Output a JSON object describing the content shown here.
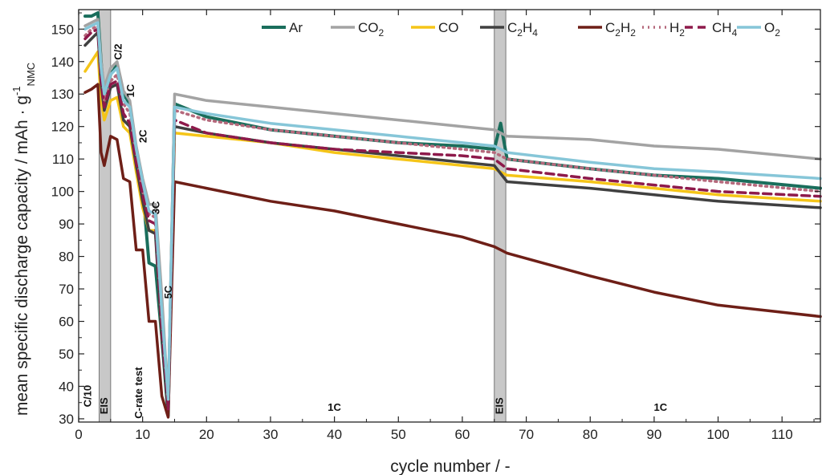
{
  "chart_data": {
    "type": "line",
    "xlabel": "cycle number / -",
    "ylabel_main": "mean specific discharge capacity / mAh · g",
    "ylabel_sup": "-1",
    "ylabel_sub": "NMC",
    "xlim": [
      0,
      116
    ],
    "ylim": [
      29,
      156
    ],
    "xticks": [
      0,
      10,
      20,
      30,
      40,
      50,
      60,
      70,
      80,
      90,
      100,
      110
    ],
    "yticks": [
      30,
      40,
      50,
      60,
      70,
      80,
      90,
      100,
      110,
      120,
      130,
      140,
      150
    ],
    "grid": false,
    "legend_position": "top",
    "eis_bands": [
      [
        3.2,
        5
      ],
      [
        65,
        66.8
      ]
    ],
    "annotations": [
      {
        "text": "C/10",
        "x": 1.5,
        "y": 37,
        "rotate": true
      },
      {
        "text": "EIS",
        "x": 4.1,
        "y": 34,
        "rotate": true
      },
      {
        "text": "C/2",
        "x": 6.3,
        "y": 143,
        "rotate": true
      },
      {
        "text": "1C",
        "x": 8.2,
        "y": 131,
        "rotate": true
      },
      {
        "text": "2C",
        "x": 10.2,
        "y": 117,
        "rotate": true
      },
      {
        "text": "3C",
        "x": 12.2,
        "y": 95,
        "rotate": true
      },
      {
        "text": "5C",
        "x": 14.1,
        "y": 69,
        "rotate": true
      },
      {
        "text": "C-rate test",
        "x": 9.5,
        "y": 38,
        "rotate": true
      },
      {
        "text": "1C",
        "x": 40,
        "y": 32.5,
        "rotate": false
      },
      {
        "text": "EIS",
        "x": 65.9,
        "y": 34,
        "rotate": true
      },
      {
        "text": "1C",
        "x": 91,
        "y": 32.5,
        "rotate": false
      }
    ],
    "series": [
      {
        "name": "Ar",
        "sub": "",
        "color": "#1a6e5c",
        "dash": "",
        "width": 4,
        "x": [
          1,
          2,
          3,
          3.5,
          4,
          5,
          6,
          7,
          8,
          9,
          10,
          11,
          12,
          13,
          14,
          15,
          20,
          30,
          40,
          50,
          60,
          65,
          66,
          67,
          80,
          90,
          100,
          116
        ],
        "y": [
          154,
          154,
          155,
          140,
          129,
          136,
          139,
          130,
          127,
          112,
          101,
          78,
          77,
          55,
          31,
          127,
          123,
          119,
          117,
          115,
          114,
          113,
          121,
          110,
          107,
          105,
          104,
          101
        ]
      },
      {
        "name": "CO",
        "sub": "2",
        "color": "#a3a3a3",
        "dash": "",
        "width": 3.5,
        "x": [
          1,
          2,
          3,
          3.5,
          4,
          5,
          6,
          7,
          8,
          9,
          10,
          11,
          12,
          13,
          14,
          15,
          20,
          30,
          40,
          50,
          60,
          65,
          67,
          80,
          90,
          100,
          116
        ],
        "y": [
          151,
          152,
          153,
          140,
          132,
          138,
          140,
          131,
          128,
          114,
          104,
          96,
          96,
          68,
          35,
          130,
          128,
          126,
          124,
          122,
          120,
          119,
          117,
          116,
          114,
          113,
          110
        ]
      },
      {
        "name": "CO",
        "sub": "",
        "color": "#f5c518",
        "dash": "",
        "width": 3.5,
        "x": [
          1,
          2,
          3,
          3.5,
          4,
          5,
          6,
          7,
          8,
          9,
          10,
          11,
          12,
          13,
          14,
          15,
          20,
          30,
          40,
          50,
          60,
          65,
          67,
          80,
          90,
          100,
          116
        ],
        "y": [
          137,
          140,
          143,
          128,
          122,
          128,
          129,
          120,
          118,
          106,
          95,
          88,
          88,
          55,
          36,
          118,
          117,
          115,
          112,
          110,
          108,
          107,
          105,
          103,
          101,
          99,
          97
        ]
      },
      {
        "name": "C",
        "sub": "2",
        "sub2": "4",
        "mid": "H",
        "color": "#404040",
        "dash": "",
        "width": 3.5,
        "x": [
          1,
          2,
          3,
          3.5,
          4,
          5,
          6,
          7,
          8,
          9,
          10,
          11,
          12,
          13,
          14,
          15,
          20,
          30,
          40,
          50,
          60,
          65,
          67,
          80,
          90,
          100,
          116
        ],
        "y": [
          145,
          147,
          149,
          133,
          125,
          132,
          133,
          122,
          120,
          108,
          97,
          88,
          87,
          55,
          32,
          120,
          118,
          115,
          113,
          111,
          109,
          108,
          103,
          101,
          99,
          97,
          95
        ]
      },
      {
        "name": "C",
        "sub": "2",
        "sub2": "2",
        "mid": "H",
        "color": "#6e1f17",
        "dash": "",
        "width": 3.5,
        "x": [
          1,
          2,
          3,
          3.5,
          4,
          5,
          6,
          7,
          8,
          9,
          10,
          11,
          12,
          13,
          14,
          15,
          20,
          30,
          40,
          50,
          60,
          65,
          67,
          80,
          90,
          100,
          116
        ],
        "y": [
          130.5,
          131.5,
          133,
          112,
          108,
          117,
          116,
          104,
          103,
          82,
          82,
          60,
          60,
          37,
          30.5,
          103,
          101,
          97,
          94,
          90,
          86,
          83,
          81,
          74,
          69,
          65,
          61.5
        ]
      },
      {
        "name": "H",
        "sub": "2",
        "color": "#b5697c",
        "dash": "2,5",
        "width": 3.5,
        "x": [
          1,
          2,
          3,
          3.5,
          4,
          5,
          6,
          7,
          8,
          9,
          10,
          11,
          12,
          13,
          14,
          15,
          20,
          30,
          40,
          50,
          60,
          65,
          67,
          80,
          90,
          100,
          116
        ],
        "y": [
          148,
          150,
          151,
          137,
          128,
          134,
          136,
          127,
          124,
          111,
          100,
          93,
          92,
          60,
          34,
          125,
          122,
          119,
          117,
          115,
          113,
          112,
          110,
          107,
          105,
          103,
          100
        ]
      },
      {
        "name": "CH",
        "sub": "4",
        "color": "#8e1a4b",
        "dash": "10,6",
        "width": 3.5,
        "x": [
          1,
          2,
          3,
          3.5,
          4,
          5,
          6,
          7,
          8,
          9,
          10,
          11,
          12,
          13,
          14,
          15,
          20,
          30,
          40,
          50,
          60,
          65,
          67,
          80,
          90,
          100,
          116
        ],
        "y": [
          147,
          149,
          150,
          134,
          126,
          133,
          134,
          124,
          121,
          109,
          99,
          91,
          90,
          58,
          33,
          122,
          118,
          115,
          113,
          112,
          111,
          110,
          107,
          104,
          102,
          100,
          98.5
        ]
      },
      {
        "name": "O",
        "sub": "2",
        "color": "#86c6d8",
        "dash": "",
        "width": 3.5,
        "x": [
          1,
          2,
          3,
          3.5,
          4,
          5,
          6,
          7,
          8,
          9,
          10,
          11,
          12,
          13,
          14,
          15,
          20,
          30,
          40,
          50,
          60,
          65,
          67,
          80,
          90,
          100,
          116
        ],
        "y": [
          150,
          151,
          152,
          138,
          130,
          136,
          138,
          128,
          126,
          113,
          103,
          94,
          93,
          63,
          36,
          126,
          124,
          121,
          119,
          117,
          115,
          114,
          112,
          109,
          107,
          106,
          104
        ]
      }
    ]
  }
}
